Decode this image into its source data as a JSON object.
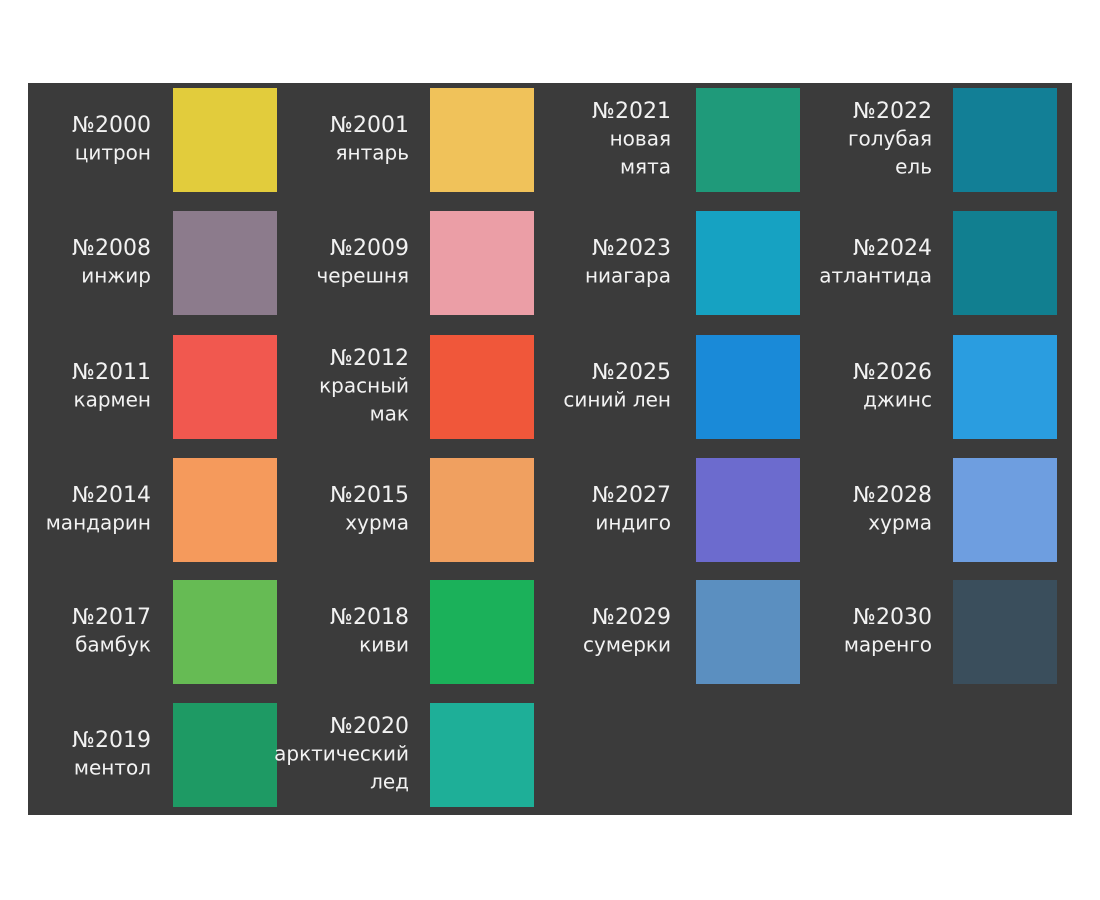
{
  "rows": [
    [
      {
        "number": "№2000",
        "name_lines": [
          "цитрон"
        ],
        "color": "#e2cc3c"
      },
      {
        "number": "№2001",
        "name_lines": [
          "янтарь"
        ],
        "color": "#f0c25a"
      },
      {
        "number": "№2021",
        "name_lines": [
          "новая",
          "мята"
        ],
        "color": "#1f9a7a"
      },
      {
        "number": "№2022",
        "name_lines": [
          "голубая",
          "ель"
        ],
        "color": "#127f96"
      }
    ],
    [
      {
        "number": "№2008",
        "name_lines": [
          "инжир"
        ],
        "color": "#8c7b8c"
      },
      {
        "number": "№2009",
        "name_lines": [
          "черешня"
        ],
        "color": "#eb9ea6"
      },
      {
        "number": "№2023",
        "name_lines": [
          "ниагара"
        ],
        "color": "#16a2c2"
      },
      {
        "number": "№2024",
        "name_lines": [
          "атлантида"
        ],
        "color": "#117f90"
      }
    ],
    [
      {
        "number": "№2011",
        "name_lines": [
          "кармен"
        ],
        "color": "#f1584f"
      },
      {
        "number": "№2012",
        "name_lines": [
          "красный",
          "мак"
        ],
        "color": "#f0573a"
      },
      {
        "number": "№2025",
        "name_lines": [
          "синий лен"
        ],
        "color": "#1a8ad8"
      },
      {
        "number": "№2026",
        "name_lines": [
          "джинс"
        ],
        "color": "#2a9de0"
      }
    ],
    [
      {
        "number": "№2014",
        "name_lines": [
          "мандарин"
        ],
        "color": "#f59a5c"
      },
      {
        "number": "№2015",
        "name_lines": [
          "хурма"
        ],
        "color": "#f0a060"
      },
      {
        "number": "№2027",
        "name_lines": [
          "индиго"
        ],
        "color": "#6c6bce"
      },
      {
        "number": "№2028",
        "name_lines": [
          "хурма"
        ],
        "color": "#6e9ee0"
      }
    ],
    [
      {
        "number": "№2017",
        "name_lines": [
          "бамбук"
        ],
        "color": "#66bb54"
      },
      {
        "number": "№2018",
        "name_lines": [
          "киви"
        ],
        "color": "#1bb15a"
      },
      {
        "number": "№2029",
        "name_lines": [
          "сумерки"
        ],
        "color": "#5b8fc0"
      },
      {
        "number": "№2030",
        "name_lines": [
          "маренго"
        ],
        "color": "#3a4e5c"
      }
    ],
    [
      {
        "number": "№2019",
        "name_lines": [
          "ментол"
        ],
        "color": "#1e9a64"
      },
      {
        "number": "№2020",
        "name_lines": [
          "арктический",
          "лед"
        ],
        "color": "#1eaf98"
      }
    ]
  ]
}
